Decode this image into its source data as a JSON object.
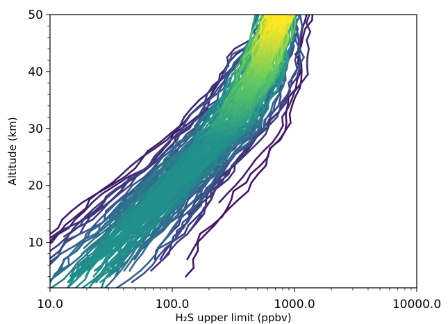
{
  "chart_data": {
    "type": "line",
    "title": "",
    "xlabel": "H₂S upper limit (ppbv)",
    "ylabel": "Altitude (km)",
    "xscale": "log",
    "xlim": [
      10,
      10000
    ],
    "ylim": [
      2,
      50
    ],
    "xticks": [
      10,
      100,
      1000,
      10000
    ],
    "xtick_labels": [
      "10.0",
      "100.0",
      "1000.0",
      "10000.0"
    ],
    "yticks": [
      10,
      20,
      30,
      40,
      50
    ],
    "ytick_labels": [
      "10",
      "20",
      "30",
      "40",
      "50"
    ],
    "colormap": "viridis",
    "colormap_colors": [
      "#440154",
      "#3b528b",
      "#21918c",
      "#5ec962",
      "#fde725"
    ],
    "color_encoding": "point density (dark = sparse, yellow = dense)",
    "grid": false,
    "legend": "none",
    "representative_series": [
      {
        "y": [
          2,
          6,
          10,
          14,
          18,
          22,
          26,
          30,
          34,
          38,
          42,
          46,
          50
        ],
        "x": [
          15,
          16,
          22,
          30,
          45,
          70,
          110,
          170,
          280,
          400,
          520,
          700,
          900
        ]
      },
      {
        "y": [
          4,
          8,
          12,
          16,
          20,
          24,
          28,
          32,
          36,
          40,
          44,
          48,
          50
        ],
        "x": [
          25,
          40,
          60,
          85,
          120,
          170,
          240,
          330,
          450,
          560,
          650,
          780,
          850
        ]
      },
      {
        "y": [
          4,
          8,
          12,
          16,
          20,
          24,
          28,
          32,
          36,
          40,
          44,
          48,
          50
        ],
        "x": [
          80,
          110,
          150,
          200,
          270,
          350,
          450,
          560,
          650,
          720,
          800,
          900,
          950
        ]
      },
      {
        "y": [
          4,
          8,
          12,
          16,
          20,
          24,
          28,
          32,
          36,
          40,
          44,
          48,
          50
        ],
        "x": [
          180,
          230,
          300,
          380,
          480,
          620,
          800,
          950,
          1000,
          1000,
          950,
          1050,
          1100
        ]
      },
      {
        "y": [
          14,
          18,
          22,
          26,
          30,
          34,
          38,
          42,
          46,
          50
        ],
        "x": [
          700,
          800,
          900,
          1050,
          1150,
          1000,
          950,
          1000,
          1100,
          1250
        ]
      }
    ]
  }
}
